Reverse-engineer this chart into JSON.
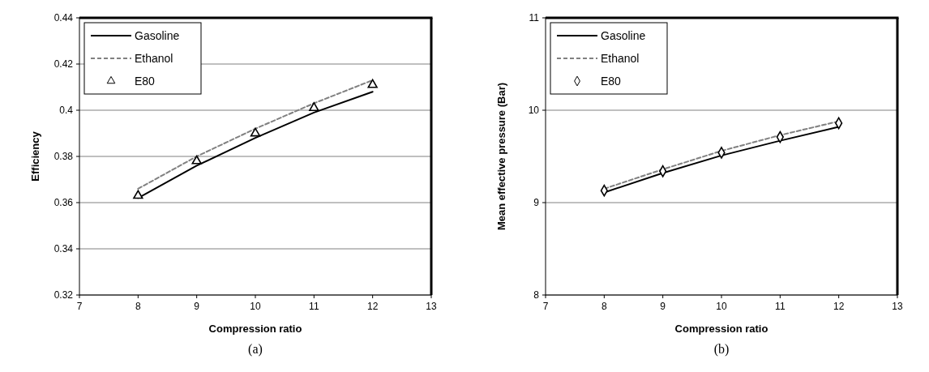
{
  "chart_data": [
    {
      "type": "line",
      "xlabel": "Compression ratio",
      "ylabel": "Efficiency",
      "annotations": [
        "(a)"
      ],
      "xlim": [
        7,
        13
      ],
      "xticks": [
        7,
        8,
        9,
        10,
        11,
        12,
        13
      ],
      "ylim": [
        0.32,
        0.44
      ],
      "yticks": [
        0.32,
        0.34,
        0.36,
        0.38,
        0.4,
        0.42,
        0.44
      ],
      "grid": "y",
      "legend": "top left",
      "x": [
        8,
        9,
        10,
        11,
        12
      ],
      "series": [
        {
          "name": "Gasoline",
          "type": "line",
          "color": "#000000",
          "line_style": "solid",
          "marker": "none",
          "values": [
            0.362,
            0.376,
            0.388,
            0.399,
            0.408
          ]
        },
        {
          "name": "Ethanol",
          "type": "line",
          "color": "#808080",
          "line_style": "dashed",
          "marker": "none",
          "values": [
            0.366,
            0.38,
            0.392,
            0.403,
            0.413
          ]
        },
        {
          "name": "E80",
          "type": "scatter",
          "color": "#000000",
          "marker": "triangle",
          "values": [
            0.363,
            0.378,
            0.39,
            0.401,
            0.411
          ]
        }
      ]
    },
    {
      "type": "line",
      "xlabel": "Compression ratio",
      "ylabel": "Mean effective pressure (Bar)",
      "annotations": [
        "(b)"
      ],
      "xlim": [
        7,
        13
      ],
      "xticks": [
        7,
        8,
        9,
        10,
        11,
        12,
        13
      ],
      "ylim": [
        8,
        11
      ],
      "yticks": [
        8,
        9,
        10,
        11
      ],
      "grid": "y",
      "legend": "top left",
      "x": [
        8,
        9,
        10,
        11,
        12
      ],
      "series": [
        {
          "name": "Gasoline",
          "type": "line",
          "color": "#000000",
          "line_style": "solid",
          "marker": "none",
          "values": [
            9.11,
            9.32,
            9.51,
            9.67,
            9.82
          ]
        },
        {
          "name": "Ethanol",
          "type": "line",
          "color": "#808080",
          "line_style": "dashed",
          "marker": "none",
          "values": [
            9.15,
            9.36,
            9.56,
            9.73,
            9.88
          ]
        },
        {
          "name": "E80",
          "type": "scatter",
          "color": "#000000",
          "marker": "diamond",
          "values": [
            9.13,
            9.34,
            9.54,
            9.71,
            9.86
          ]
        }
      ]
    }
  ]
}
